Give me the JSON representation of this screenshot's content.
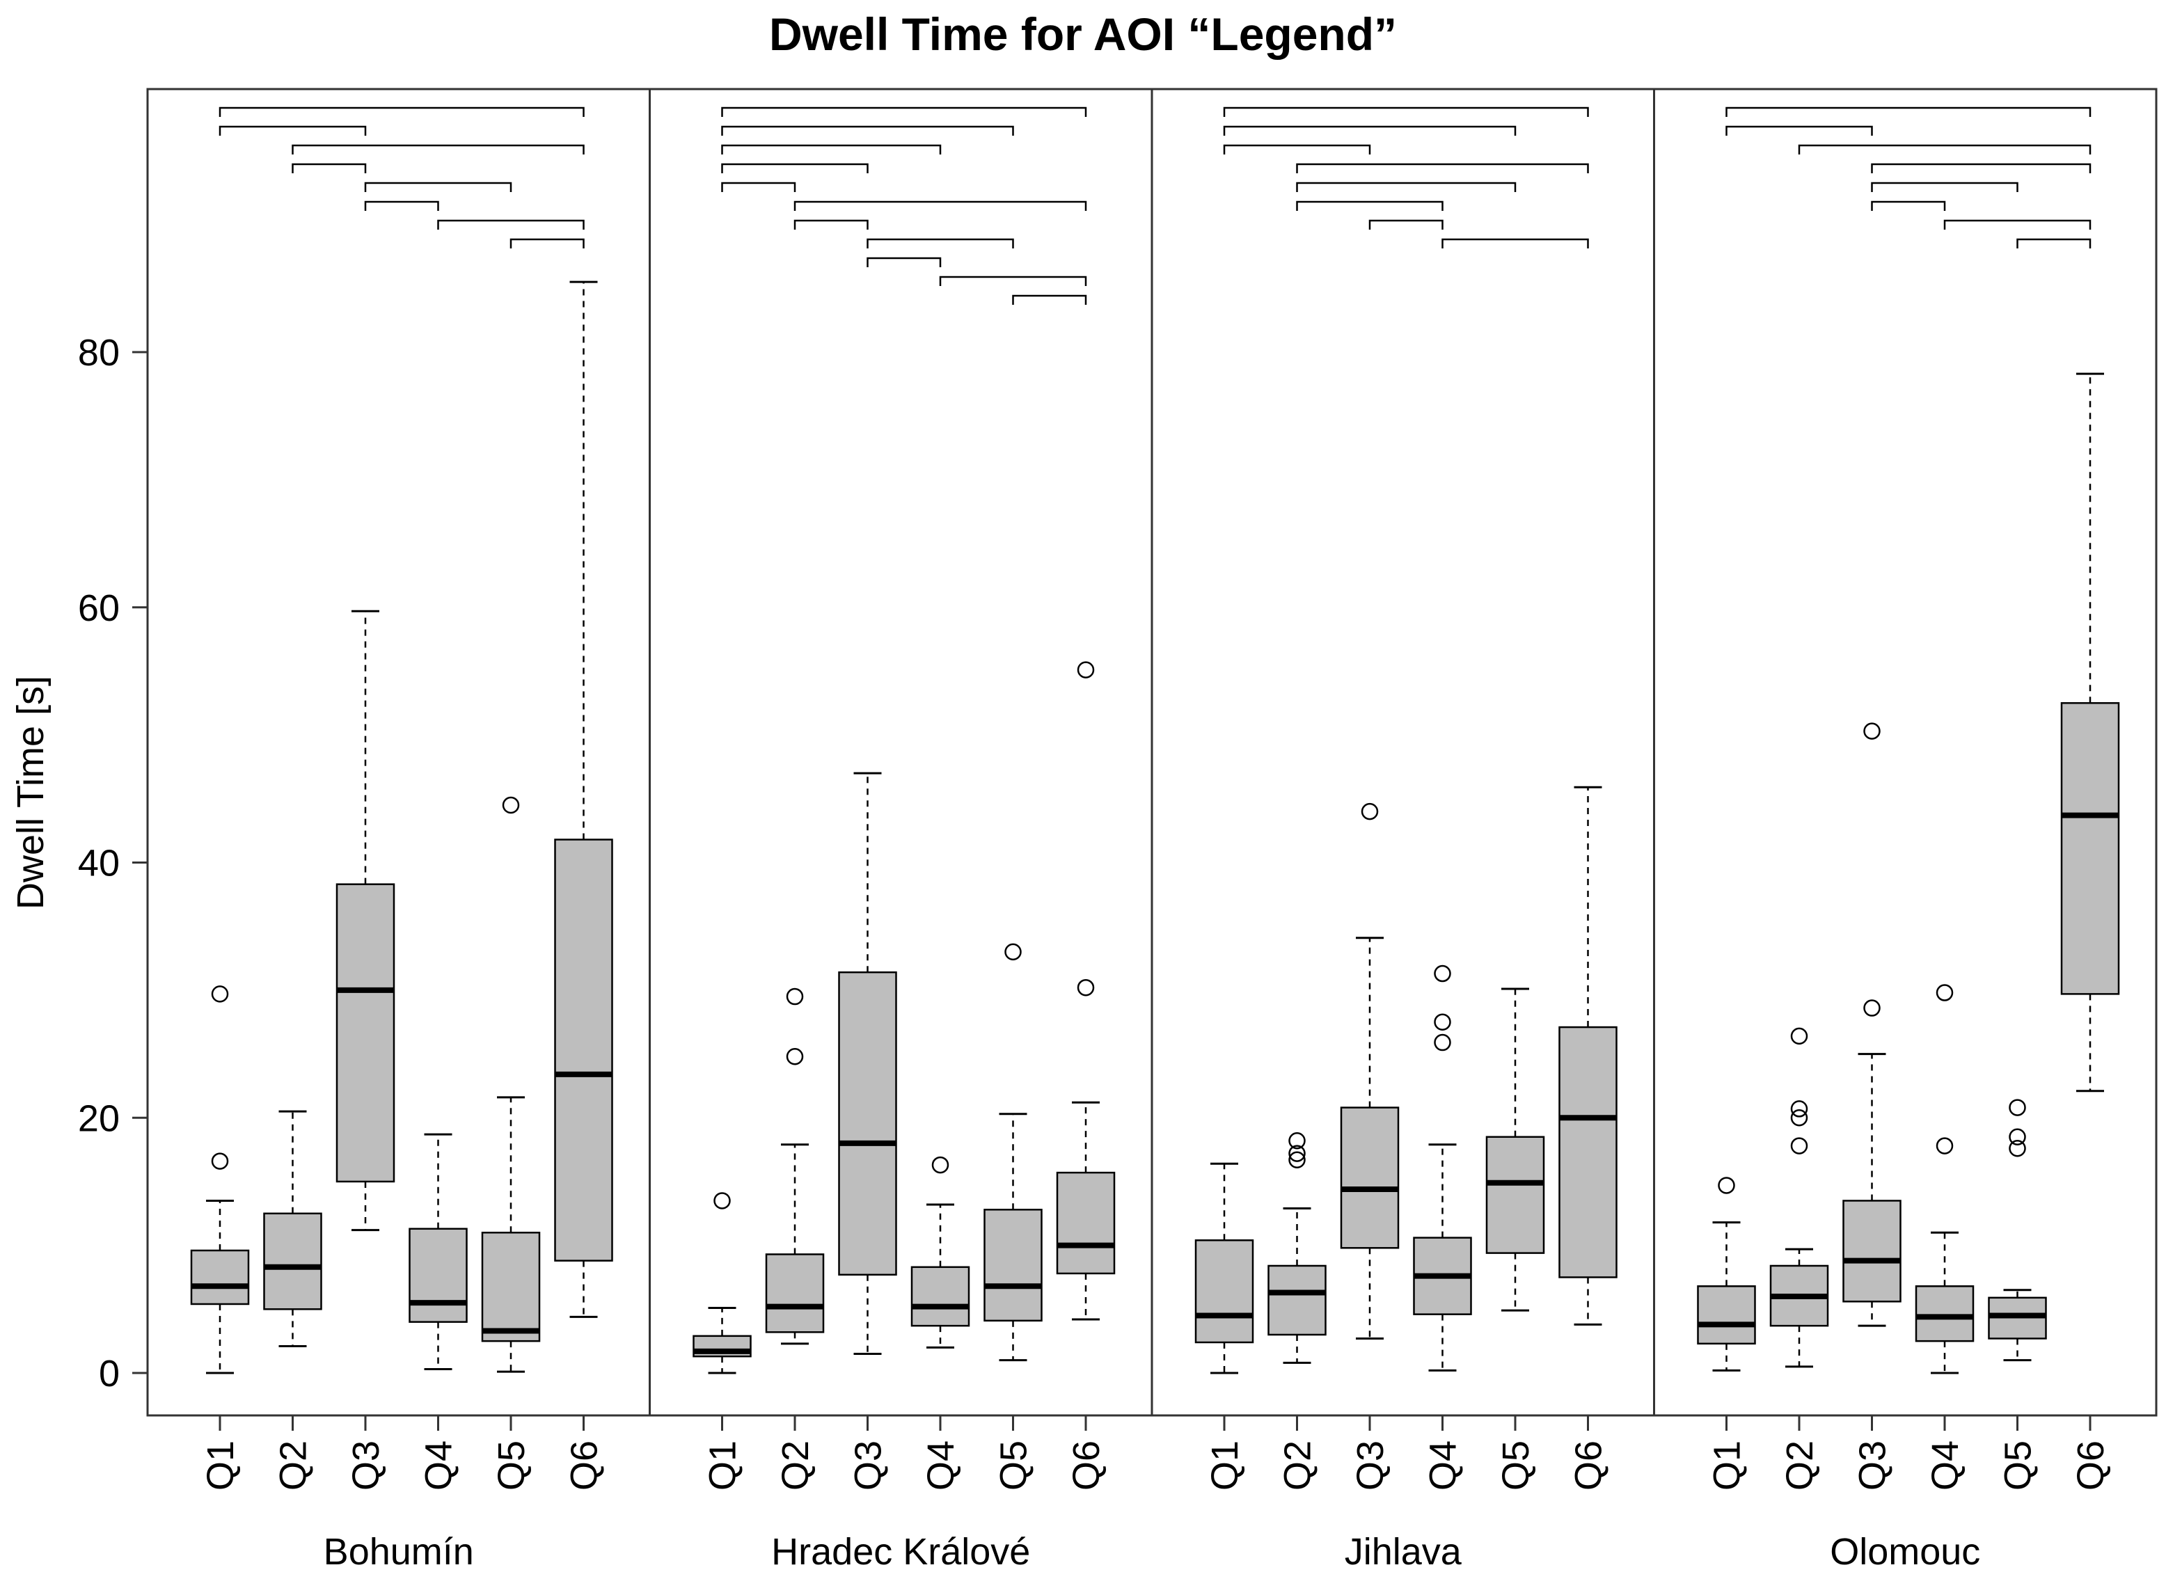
{
  "chart_data": {
    "type": "boxplot",
    "title": "Dwell Time for AOI “Legend”",
    "ylabel": "Dwell Time [s]",
    "xlabel": "",
    "ylim": [
      -3.3,
      100
    ],
    "yticks": [
      0,
      20,
      40,
      60,
      80
    ],
    "categories": [
      "Q1",
      "Q2",
      "Q3",
      "Q4",
      "Q5",
      "Q6"
    ],
    "groups": [
      {
        "name": "Bohumín",
        "boxes": [
          {
            "q": "Q1",
            "whisker_low": 0,
            "q1": 5.4,
            "median": 6.8,
            "q3": 9.6,
            "whisker_high": 13.5,
            "outliers": [
              16.6,
              29.7
            ]
          },
          {
            "q": "Q2",
            "whisker_low": 2.1,
            "q1": 5.0,
            "median": 8.3,
            "q3": 12.5,
            "whisker_high": 20.5,
            "outliers": []
          },
          {
            "q": "Q3",
            "whisker_low": 11.2,
            "q1": 15.0,
            "median": 30.0,
            "q3": 38.3,
            "whisker_high": 59.7,
            "outliers": []
          },
          {
            "q": "Q4",
            "whisker_low": 0.3,
            "q1": 4.0,
            "median": 5.5,
            "q3": 11.3,
            "whisker_high": 18.7,
            "outliers": []
          },
          {
            "q": "Q5",
            "whisker_low": 0.1,
            "q1": 2.5,
            "median": 3.3,
            "q3": 11.0,
            "whisker_high": 21.6,
            "outliers": [
              44.5
            ]
          },
          {
            "q": "Q6",
            "whisker_low": 4.4,
            "q1": 8.8,
            "median": 23.4,
            "q3": 41.8,
            "whisker_high": 85.5,
            "outliers": []
          }
        ],
        "significance_brackets": [
          [
            "Q1",
            "Q6"
          ],
          [
            "Q1",
            "Q3"
          ],
          [
            "Q2",
            "Q6"
          ],
          [
            "Q2",
            "Q3"
          ],
          [
            "Q3",
            "Q5"
          ],
          [
            "Q3",
            "Q4"
          ],
          [
            "Q4",
            "Q6"
          ],
          [
            "Q5",
            "Q6"
          ]
        ]
      },
      {
        "name": "Hradec Králové",
        "boxes": [
          {
            "q": "Q1",
            "whisker_low": 0,
            "q1": 1.3,
            "median": 1.7,
            "q3": 2.9,
            "whisker_high": 5.1,
            "outliers": [
              13.5
            ]
          },
          {
            "q": "Q2",
            "whisker_low": 2.3,
            "q1": 3.2,
            "median": 5.2,
            "q3": 9.3,
            "whisker_high": 17.9,
            "outliers": [
              24.8,
              29.5
            ]
          },
          {
            "q": "Q3",
            "whisker_low": 1.5,
            "q1": 7.7,
            "median": 18.0,
            "q3": 31.4,
            "whisker_high": 47.0,
            "outliers": []
          },
          {
            "q": "Q4",
            "whisker_low": 2.0,
            "q1": 3.7,
            "median": 5.2,
            "q3": 8.3,
            "whisker_high": 13.2,
            "outliers": [
              16.3
            ]
          },
          {
            "q": "Q5",
            "whisker_low": 1.0,
            "q1": 4.1,
            "median": 6.8,
            "q3": 12.8,
            "whisker_high": 20.3,
            "outliers": [
              33.0
            ]
          },
          {
            "q": "Q6",
            "whisker_low": 4.2,
            "q1": 7.8,
            "median": 10.0,
            "q3": 15.7,
            "whisker_high": 21.2,
            "outliers": [
              30.2,
              55.1
            ]
          }
        ],
        "significance_brackets": [
          [
            "Q1",
            "Q6"
          ],
          [
            "Q1",
            "Q5"
          ],
          [
            "Q1",
            "Q4"
          ],
          [
            "Q1",
            "Q3"
          ],
          [
            "Q1",
            "Q2"
          ],
          [
            "Q2",
            "Q6"
          ],
          [
            "Q2",
            "Q3"
          ],
          [
            "Q3",
            "Q5"
          ],
          [
            "Q3",
            "Q4"
          ],
          [
            "Q4",
            "Q6"
          ],
          [
            "Q5",
            "Q6"
          ]
        ]
      },
      {
        "name": "Jihlava",
        "boxes": [
          {
            "q": "Q1",
            "whisker_low": 0,
            "q1": 2.4,
            "median": 4.5,
            "q3": 10.4,
            "whisker_high": 16.4,
            "outliers": []
          },
          {
            "q": "Q2",
            "whisker_low": 0.8,
            "q1": 3.0,
            "median": 6.3,
            "q3": 8.4,
            "whisker_high": 12.9,
            "outliers": [
              16.7,
              17.2,
              18.2
            ]
          },
          {
            "q": "Q3",
            "whisker_low": 2.7,
            "q1": 9.8,
            "median": 14.4,
            "q3": 20.8,
            "whisker_high": 34.1,
            "outliers": [
              44.0
            ]
          },
          {
            "q": "Q4",
            "whisker_low": 0.2,
            "q1": 4.6,
            "median": 7.6,
            "q3": 10.6,
            "whisker_high": 17.9,
            "outliers": [
              25.9,
              27.5,
              31.3
            ]
          },
          {
            "q": "Q5",
            "whisker_low": 4.9,
            "q1": 9.4,
            "median": 14.9,
            "q3": 18.5,
            "whisker_high": 30.1,
            "outliers": []
          },
          {
            "q": "Q6",
            "whisker_low": 3.8,
            "q1": 7.5,
            "median": 20.0,
            "q3": 27.1,
            "whisker_high": 45.9,
            "outliers": []
          }
        ],
        "significance_brackets": [
          [
            "Q1",
            "Q6"
          ],
          [
            "Q1",
            "Q5"
          ],
          [
            "Q1",
            "Q3"
          ],
          [
            "Q2",
            "Q6"
          ],
          [
            "Q2",
            "Q5"
          ],
          [
            "Q2",
            "Q4"
          ],
          [
            "Q3",
            "Q4"
          ],
          [
            "Q4",
            "Q6"
          ]
        ]
      },
      {
        "name": "Olomouc",
        "boxes": [
          {
            "q": "Q1",
            "whisker_low": 0.2,
            "q1": 2.3,
            "median": 3.8,
            "q3": 6.8,
            "whisker_high": 11.8,
            "outliers": [
              14.7
            ]
          },
          {
            "q": "Q2",
            "whisker_low": 0.5,
            "q1": 3.7,
            "median": 6.0,
            "q3": 8.4,
            "whisker_high": 9.7,
            "outliers": [
              17.8,
              20.0,
              20.7,
              26.4
            ]
          },
          {
            "q": "Q3",
            "whisker_low": 3.7,
            "q1": 5.6,
            "median": 8.8,
            "q3": 13.5,
            "whisker_high": 25.0,
            "outliers": [
              28.6,
              50.3
            ]
          },
          {
            "q": "Q4",
            "whisker_low": 0,
            "q1": 2.5,
            "median": 4.4,
            "q3": 6.8,
            "whisker_high": 11.0,
            "outliers": [
              17.8,
              29.8
            ]
          },
          {
            "q": "Q5",
            "whisker_low": 1.0,
            "q1": 2.7,
            "median": 4.5,
            "q3": 5.9,
            "whisker_high": 6.5,
            "outliers": [
              17.6,
              18.5,
              20.8
            ]
          },
          {
            "q": "Q6",
            "whisker_low": 22.1,
            "q1": 29.7,
            "median": 43.7,
            "q3": 52.5,
            "whisker_high": 78.3,
            "outliers": []
          }
        ],
        "significance_brackets": [
          [
            "Q1",
            "Q6"
          ],
          [
            "Q1",
            "Q3"
          ],
          [
            "Q2",
            "Q6"
          ],
          [
            "Q3",
            "Q6"
          ],
          [
            "Q3",
            "Q5"
          ],
          [
            "Q3",
            "Q4"
          ],
          [
            "Q4",
            "Q6"
          ],
          [
            "Q5",
            "Q6"
          ]
        ]
      }
    ]
  }
}
